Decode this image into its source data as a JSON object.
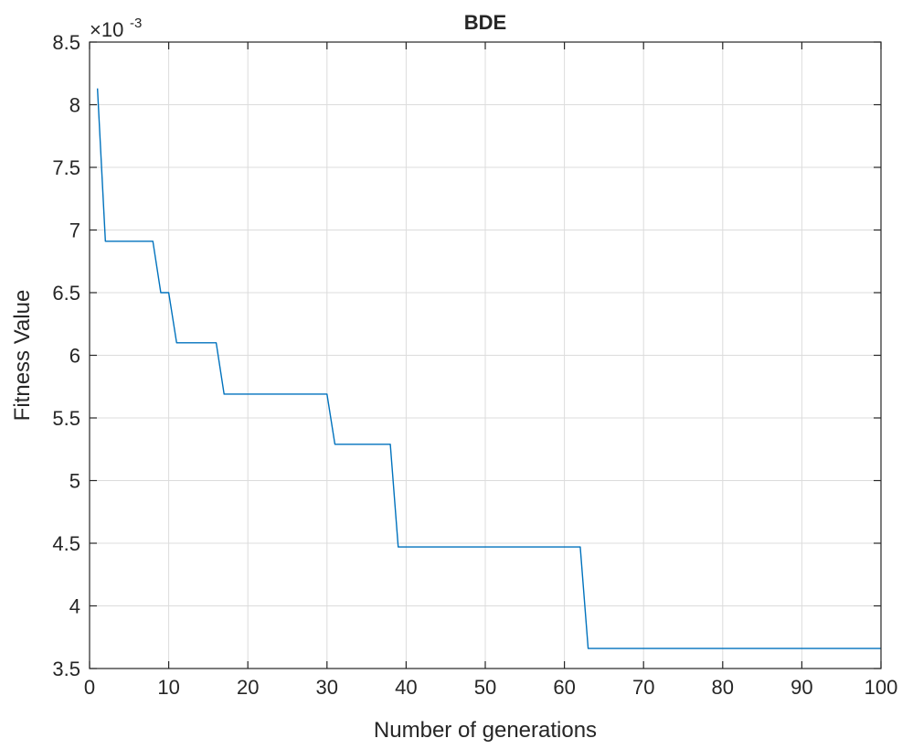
{
  "chart_data": {
    "type": "line",
    "title": "BDE",
    "xlabel": "Number of generations",
    "ylabel": "Fitness Value",
    "xlim": [
      0,
      100
    ],
    "ylim": [
      3.5,
      8.5
    ],
    "y_exponent_label": "×10",
    "y_exponent": "-3",
    "xticks": [
      0,
      10,
      20,
      30,
      40,
      50,
      60,
      70,
      80,
      90,
      100
    ],
    "yticks": [
      3.5,
      4,
      4.5,
      5,
      5.5,
      6,
      6.5,
      7,
      7.5,
      8,
      8.5
    ],
    "ytick_labels": [
      "3.5",
      "4",
      "4.5",
      "5",
      "5.5",
      "6",
      "6.5",
      "7",
      "7.5",
      "8",
      "8.5"
    ],
    "grid": true,
    "series": [
      {
        "color": "#0072BD",
        "x": [
          1,
          2,
          3,
          4,
          5,
          6,
          7,
          8,
          9,
          10,
          11,
          12,
          13,
          14,
          15,
          16,
          17,
          18,
          19,
          20,
          21,
          22,
          23,
          24,
          25,
          26,
          27,
          28,
          29,
          30,
          31,
          32,
          33,
          34,
          35,
          36,
          37,
          38,
          39,
          40,
          41,
          42,
          43,
          44,
          45,
          46,
          47,
          48,
          49,
          50,
          51,
          52,
          53,
          54,
          55,
          56,
          57,
          58,
          59,
          60,
          61,
          62,
          63,
          64,
          65,
          66,
          67,
          68,
          69,
          70,
          71,
          72,
          73,
          74,
          75,
          76,
          77,
          78,
          79,
          80,
          81,
          82,
          83,
          84,
          85,
          86,
          87,
          88,
          89,
          90,
          91,
          92,
          93,
          94,
          95,
          96,
          97,
          98,
          99,
          100
        ],
        "y": [
          8.13,
          6.91,
          6.91,
          6.91,
          6.91,
          6.91,
          6.91,
          6.91,
          6.5,
          6.5,
          6.1,
          6.1,
          6.1,
          6.1,
          6.1,
          6.1,
          5.69,
          5.69,
          5.69,
          5.69,
          5.69,
          5.69,
          5.69,
          5.69,
          5.69,
          5.69,
          5.69,
          5.69,
          5.69,
          5.69,
          5.29,
          5.29,
          5.29,
          5.29,
          5.29,
          5.29,
          5.29,
          5.29,
          4.47,
          4.47,
          4.47,
          4.47,
          4.47,
          4.47,
          4.47,
          4.47,
          4.47,
          4.47,
          4.47,
          4.47,
          4.47,
          4.47,
          4.47,
          4.47,
          4.47,
          4.47,
          4.47,
          4.47,
          4.47,
          4.47,
          4.47,
          4.47,
          3.66,
          3.66,
          3.66,
          3.66,
          3.66,
          3.66,
          3.66,
          3.66,
          3.66,
          3.66,
          3.66,
          3.66,
          3.66,
          3.66,
          3.66,
          3.66,
          3.66,
          3.66,
          3.66,
          3.66,
          3.66,
          3.66,
          3.66,
          3.66,
          3.66,
          3.66,
          3.66,
          3.66,
          3.66,
          3.66,
          3.66,
          3.66,
          3.66,
          3.66,
          3.66,
          3.66,
          3.66,
          3.66
        ]
      }
    ]
  }
}
